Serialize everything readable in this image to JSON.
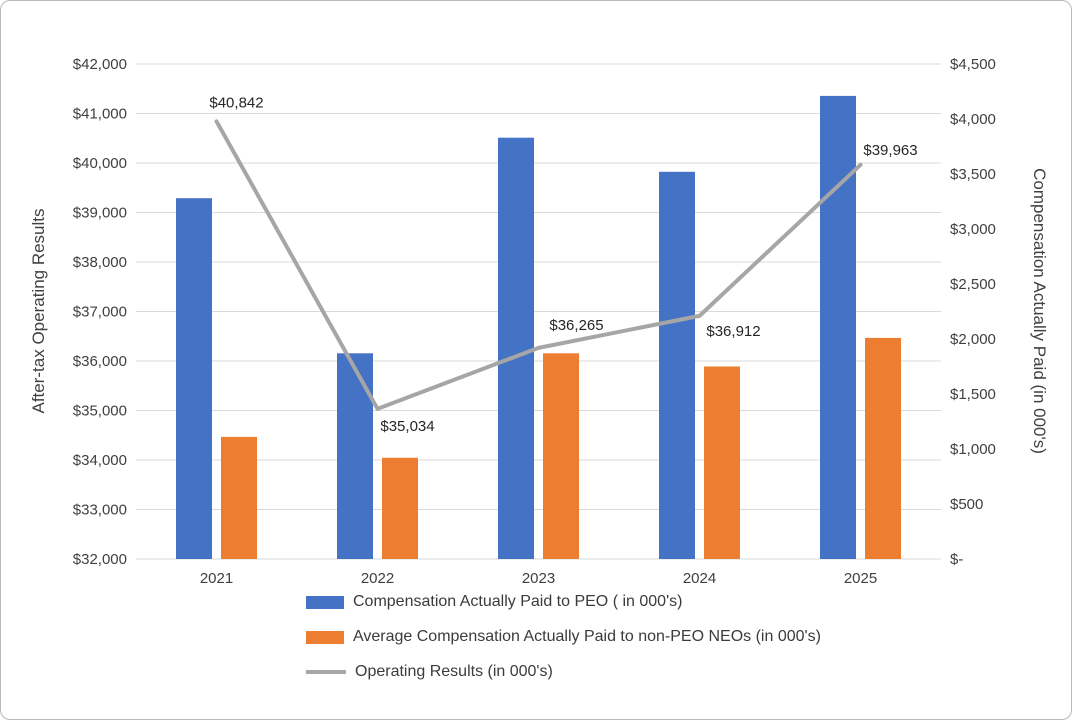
{
  "chart_data": {
    "type": "combo-bar-line",
    "title": "",
    "categories": [
      "2021",
      "2022",
      "2023",
      "2024",
      "2025"
    ],
    "series": [
      {
        "name": "Compensation Actually Paid to PEO ( in 000's)",
        "type": "bar",
        "axis": "right",
        "color": "#4472C4",
        "values": [
          3280,
          1870,
          3830,
          3520,
          4210
        ]
      },
      {
        "name": "Average Compensation Actually Paid to non-PEO NEOs  (in 000's)",
        "type": "bar",
        "axis": "right",
        "color": "#ED7D31",
        "values": [
          1110,
          920,
          1870,
          1750,
          2010
        ]
      },
      {
        "name": "Operating Results (in 000's)",
        "type": "line",
        "axis": "left",
        "color": "#A6A6A6",
        "values": [
          40842,
          35034,
          36265,
          36912,
          39963
        ],
        "labels": [
          "$40,842",
          "$35,034",
          "$36,265",
          "$36,912",
          "$39,963"
        ],
        "label_offsets": [
          [
            20,
            -14
          ],
          [
            30,
            22
          ],
          [
            38,
            -18
          ],
          [
            34,
            20
          ],
          [
            30,
            -10
          ]
        ]
      }
    ],
    "left_axis": {
      "title": "After-tax Operating Results",
      "min": 32000,
      "max": 42000,
      "step": 1000,
      "tick_labels": [
        "$42,000",
        "$41,000",
        "$40,000",
        "$39,000",
        "$38,000",
        "$37,000",
        "$36,000",
        "$35,000",
        "$34,000",
        "$33,000",
        "$32,000"
      ]
    },
    "right_axis": {
      "title": "Compensation Actually Paid (in 000's)",
      "min": 0,
      "max": 4500,
      "step": 500,
      "tick_labels": [
        "$4,500",
        "$4,000",
        "$3,500",
        "$3,000",
        "$2,500",
        "$2,000",
        "$1,500",
        "$1,000",
        "$500",
        "$-"
      ]
    },
    "grid": true,
    "gridline_color": "#D9D9D9",
    "background_color": "#FFFFFF",
    "legend_position": "bottom"
  }
}
